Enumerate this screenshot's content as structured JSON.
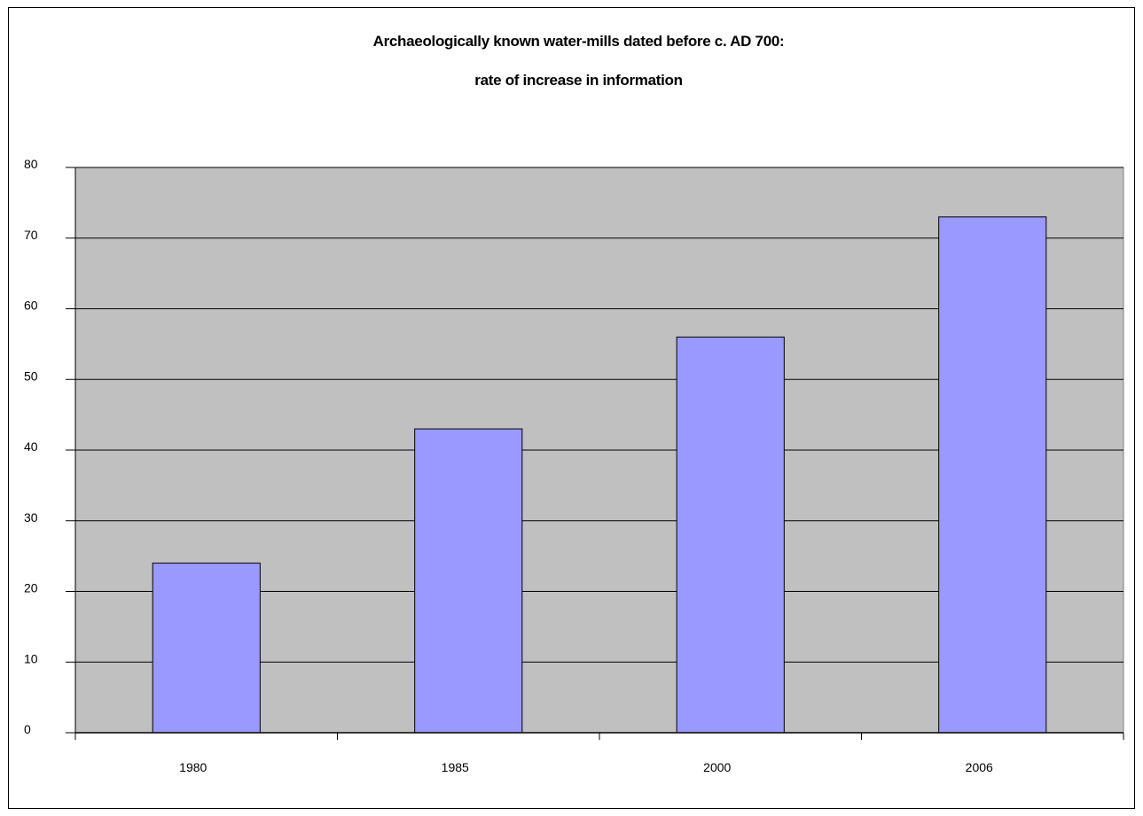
{
  "chart_data": {
    "type": "bar",
    "title": "Archaeologically known water-mills dated before c. AD 700:",
    "subtitle": "rate of increase in information",
    "xlabel": "",
    "ylabel": "",
    "categories": [
      "1980",
      "1985",
      "2000",
      "2006"
    ],
    "values": [
      24,
      43,
      56,
      73
    ],
    "ylim": [
      0,
      80
    ],
    "yticks": [
      0,
      10,
      20,
      30,
      40,
      50,
      60,
      70,
      80
    ],
    "grid": true,
    "legend": "none",
    "colors": {
      "bar_fill": "#9999ff",
      "bar_stroke": "#000000",
      "plot_background": "#c0c0c0",
      "gridline": "#000000"
    }
  }
}
